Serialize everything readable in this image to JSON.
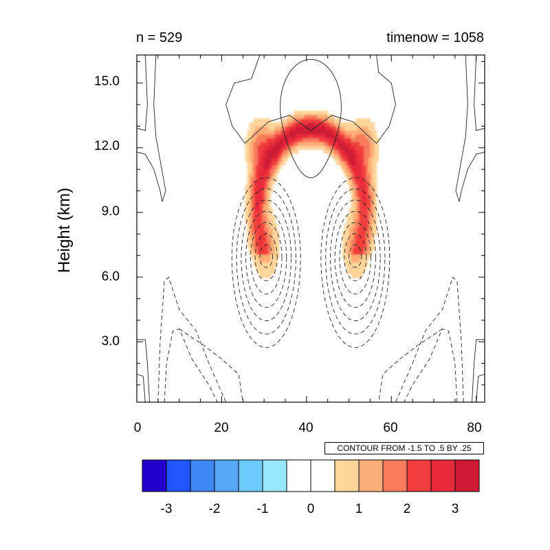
{
  "chart_data": {
    "type": "heatmap",
    "title_left": "n = 529",
    "title_right": "timenow = 1058",
    "ylabel": "Height (km)",
    "xlabel": "",
    "xlim": [
      0,
      82
    ],
    "ylim": [
      0.2,
      16.3
    ],
    "xticks": [
      "0",
      "20",
      "40",
      "60",
      "80"
    ],
    "yticks": [
      "3.0",
      "6.0",
      "9.0",
      "12.0",
      "15.0"
    ],
    "contour_info": "CONTOUR FROM -1.5 TO .5 BY .25",
    "contour_levels": [
      -1.5,
      -1.25,
      -1,
      -0.75,
      -0.5,
      -0.25,
      0,
      0.25,
      0.5
    ],
    "colorbar": {
      "colors": [
        "#2200cc",
        "#2255ff",
        "#3f88f5",
        "#55a8f5",
        "#6ccaff",
        "#99e8ff",
        "#ffffff",
        "#ffffff",
        "#fdd49a",
        "#fcad78",
        "#f77b5c",
        "#f23e3e",
        "#e72a3a",
        "#cd1b34"
      ],
      "tick_labels": [
        "-3",
        "-2",
        "-1",
        "0",
        "1",
        "2",
        "3"
      ]
    },
    "shaded_field": {
      "description_values": "positive anomaly arch centered x~41, max ~3 near (30,12.2) and (53,12.2), lobes down to ~6.5 km at x~30 and x~53",
      "levels": [
        0.5,
        1.0,
        1.5,
        2.0,
        2.5,
        3.0
      ]
    }
  }
}
